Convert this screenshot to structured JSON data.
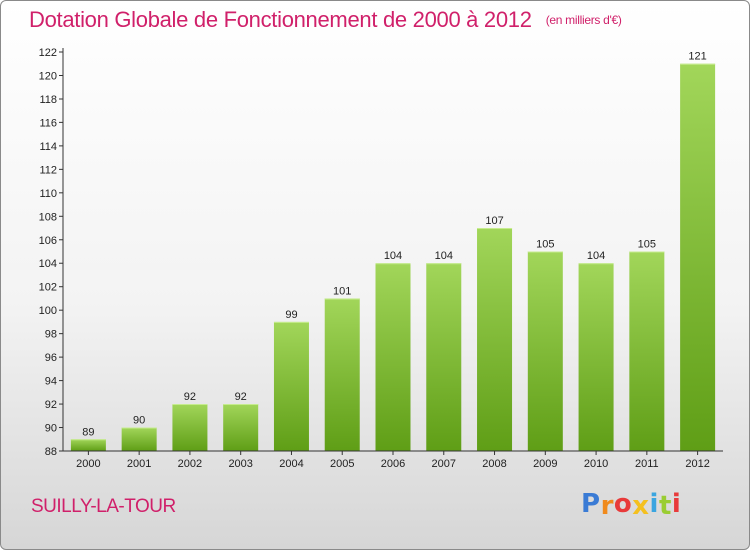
{
  "title": "Dotation Globale de Fonctionnement de 2000 à 2012",
  "subtitle": "(en milliers d'€)",
  "place": "SUILLY-LA-TOUR",
  "logo": {
    "text": "Proxiti",
    "letter_colors": [
      "#3a7bd5",
      "#f08a1c",
      "#e83a3a",
      "#f4c01f",
      "#3aa5e0",
      "#9acd32",
      "#e83a3a"
    ]
  },
  "colors": {
    "accent": "#d0206a",
    "bar_top": "#a2d65a",
    "bar_bottom": "#5f9e16",
    "axis": "#333333"
  },
  "chart_data": {
    "type": "bar",
    "categories": [
      "2000",
      "2001",
      "2002",
      "2003",
      "2004",
      "2005",
      "2006",
      "2007",
      "2008",
      "2009",
      "2010",
      "2011",
      "2012"
    ],
    "values": [
      89,
      90,
      92,
      92,
      99,
      101,
      104,
      104,
      107,
      105,
      104,
      105,
      121
    ],
    "ylim": [
      88,
      122
    ],
    "yticks": [
      88,
      90,
      92,
      94,
      96,
      98,
      100,
      102,
      104,
      106,
      108,
      110,
      112,
      114,
      116,
      118,
      120,
      122
    ],
    "grid": false,
    "data_labels": true
  }
}
